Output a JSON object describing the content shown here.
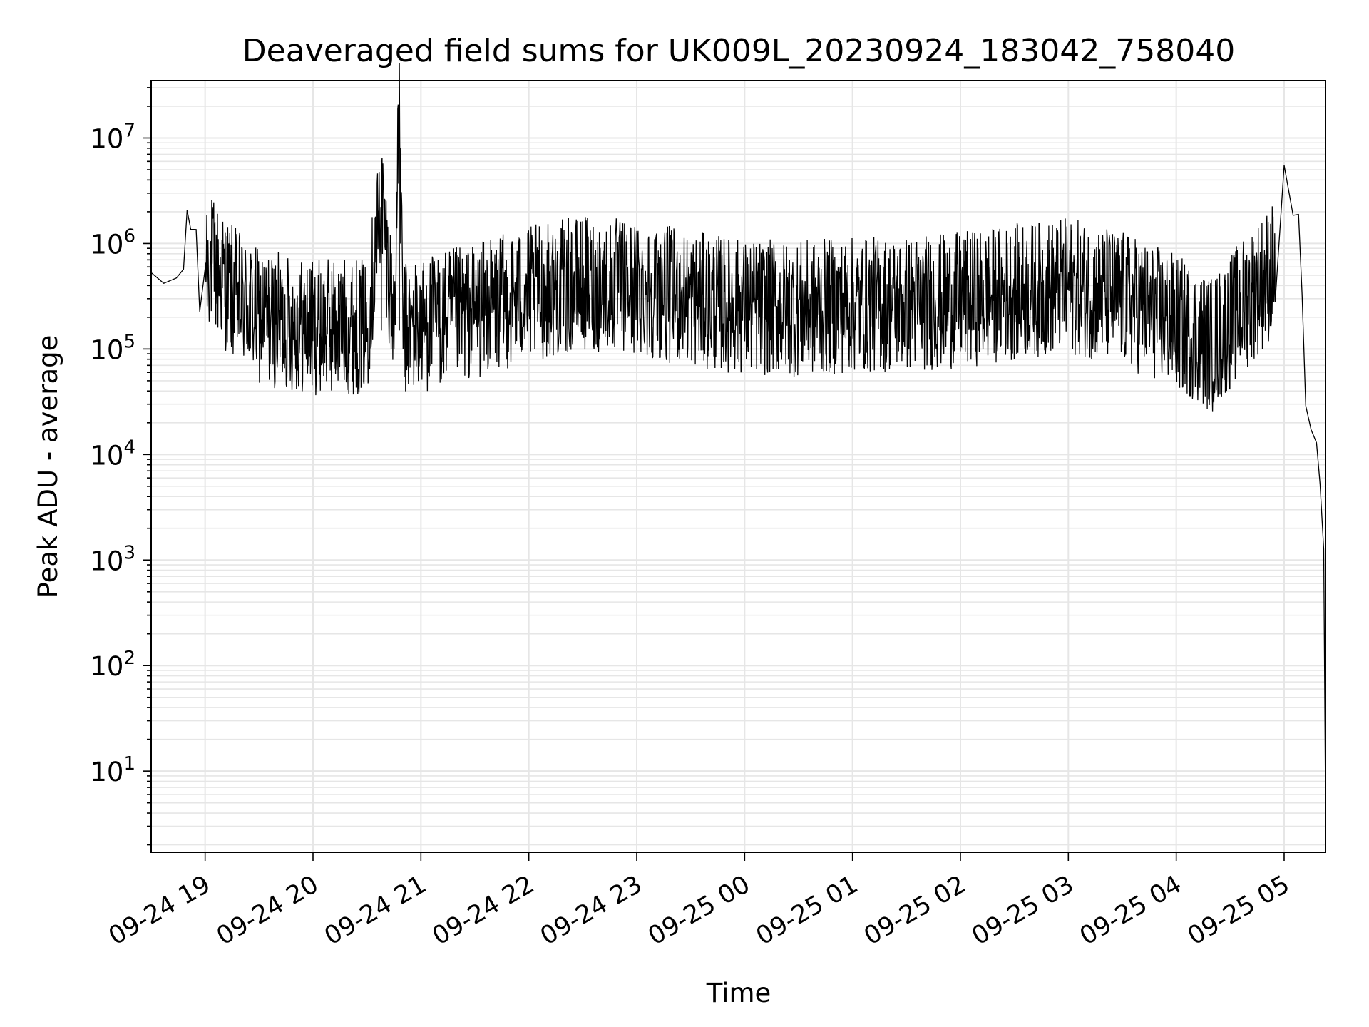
{
  "chart_data": {
    "type": "line",
    "title": "Deaveraged field sums for UK009L_20230924_183042_758040",
    "xlabel": "Time",
    "ylabel": "Peak ADU - average",
    "yscale": "log",
    "ylim": [
      1.7,
      35000000
    ],
    "xlim": [
      "2023-09-24 18:30",
      "2023-09-25 05:23"
    ],
    "x_ticks": [
      "09-24 19",
      "09-24 20",
      "09-24 21",
      "09-24 22",
      "09-24 23",
      "09-25 00",
      "09-25 01",
      "09-25 02",
      "09-25 03",
      "09-25 04",
      "09-25 05"
    ],
    "y_ticks": [
      {
        "base": "10",
        "exp": "1",
        "value": 10
      },
      {
        "base": "10",
        "exp": "2",
        "value": 100
      },
      {
        "base": "10",
        "exp": "3",
        "value": 1000
      },
      {
        "base": "10",
        "exp": "4",
        "value": 10000
      },
      {
        "base": "10",
        "exp": "5",
        "value": 100000
      },
      {
        "base": "10",
        "exp": "6",
        "value": 1000000
      },
      {
        "base": "10",
        "exp": "7",
        "value": 10000000
      }
    ],
    "grid": true,
    "line_color": "#000000",
    "series": [
      {
        "points": [
          [
            "2023-09-24 18:30",
            450000
          ],
          [
            "2023-09-24 18:37",
            420000
          ],
          [
            "2023-09-24 18:44",
            460000
          ],
          [
            "2023-09-24 18:48",
            600000
          ],
          [
            "2023-09-24 18:50",
            2000000
          ],
          [
            "2023-09-24 18:52",
            1300000
          ],
          [
            "2023-09-24 18:55",
            1500000
          ],
          [
            "2023-09-24 18:57",
            190000
          ],
          [
            "2023-09-24 19:00",
            800000
          ],
          [
            "2023-09-24 19:15",
            350000
          ],
          [
            "2023-09-24 19:30",
            200000
          ],
          [
            "2023-09-24 19:45",
            180000
          ],
          [
            "2023-09-24 20:00",
            160000
          ],
          [
            "2023-09-24 20:15",
            170000
          ],
          [
            "2023-09-24 20:30",
            160000
          ],
          [
            "2023-09-24 20:38",
            2800000
          ],
          [
            "2023-09-24 20:45",
            170000
          ],
          [
            "2023-09-24 20:48",
            17000000
          ],
          [
            "2023-09-24 20:50",
            150000
          ],
          [
            "2023-09-24 21:00",
            170000
          ],
          [
            "2023-09-24 21:30",
            230000
          ],
          [
            "2023-09-24 22:00",
            330000
          ],
          [
            "2023-09-24 22:30",
            420000
          ],
          [
            "2023-09-24 23:00",
            380000
          ],
          [
            "2023-09-24 23:30",
            300000
          ],
          [
            "2023-09-25 00:00",
            250000
          ],
          [
            "2023-09-25 00:30",
            240000
          ],
          [
            "2023-09-25 01:00",
            260000
          ],
          [
            "2023-09-25 01:30",
            270000
          ],
          [
            "2023-09-25 02:00",
            290000
          ],
          [
            "2023-09-25 02:30",
            350000
          ],
          [
            "2023-09-25 03:00",
            400000
          ],
          [
            "2023-09-25 03:30",
            300000
          ],
          [
            "2023-09-25 04:00",
            180000
          ],
          [
            "2023-09-25 04:20",
            110000
          ],
          [
            "2023-09-25 04:40",
            300000
          ],
          [
            "2023-09-25 04:55",
            600000
          ],
          [
            "2023-09-25 05:00",
            5000000
          ],
          [
            "2023-09-25 05:05",
            2000000
          ],
          [
            "2023-09-25 05:08",
            1500000
          ],
          [
            "2023-09-25 05:10",
            300000
          ],
          [
            "2023-09-25 05:12",
            30000
          ],
          [
            "2023-09-25 05:15",
            20000
          ],
          [
            "2023-09-25 05:18",
            10000
          ],
          [
            "2023-09-25 05:20",
            5000
          ],
          [
            "2023-09-25 05:22",
            1000
          ],
          [
            "2023-09-25 05:23",
            4
          ]
        ]
      }
    ]
  }
}
